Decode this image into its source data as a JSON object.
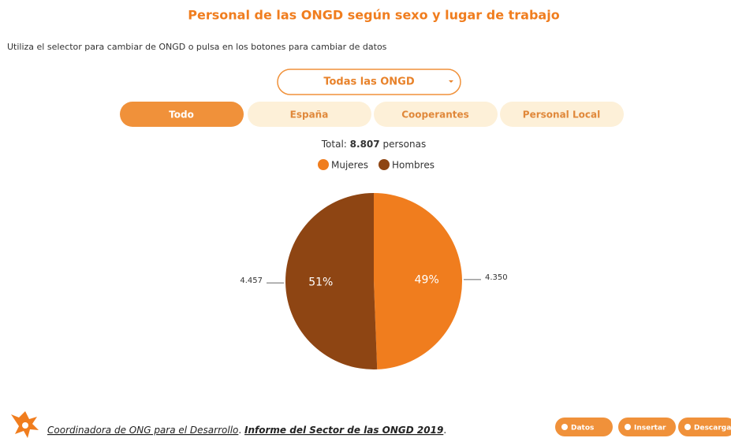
{
  "chart_data": {
    "type": "pie",
    "title": "Personal de las ONGD según sexo y lugar de trabajo",
    "subtitle": "Utiliza el selector para cambiar de ONGD o pulsa en los botones para cambiar de datos",
    "selector": "Todas las ONGD",
    "buttons": [
      "Todo",
      "España",
      "Cooperantes",
      "Personal Local"
    ],
    "active_button": 0,
    "total": {
      "label": "Total:",
      "value_label": "8.807",
      "unit": "personas"
    },
    "categories": [
      "Mujeres",
      "Hombres"
    ],
    "values": [
      4350,
      4457
    ],
    "value_labels": [
      "4.350",
      "4.457"
    ],
    "percent_labels": [
      "49%",
      "51%"
    ],
    "colors": [
      "#f07d1e",
      "#8e4513"
    ],
    "legend": "top",
    "footer": {
      "organization": "Coordinadora de ONG para el Desarrollo",
      "separator": ".",
      "report": "Informe del Sector de las ONGD 2019",
      "end": ".",
      "buttons": [
        "Datos",
        "Insertar",
        "Descargar"
      ]
    }
  }
}
